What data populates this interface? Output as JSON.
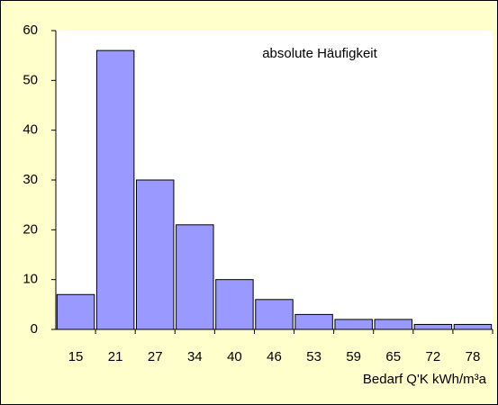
{
  "chart_data": {
    "type": "bar",
    "annotation": "absolute Häufigkeit",
    "x_label": "Bedarf Q'K kWh/m³a",
    "categories": [
      "15",
      "21",
      "27",
      "34",
      "40",
      "46",
      "53",
      "59",
      "65",
      "72",
      "78"
    ],
    "values": [
      7,
      56,
      30,
      21,
      10,
      6,
      3,
      2,
      2,
      1,
      1
    ],
    "color": "#9999ff",
    "ylim": [
      0,
      60
    ],
    "yticks": [
      0,
      10,
      20,
      30,
      40,
      50,
      60
    ],
    "grid": false
  }
}
